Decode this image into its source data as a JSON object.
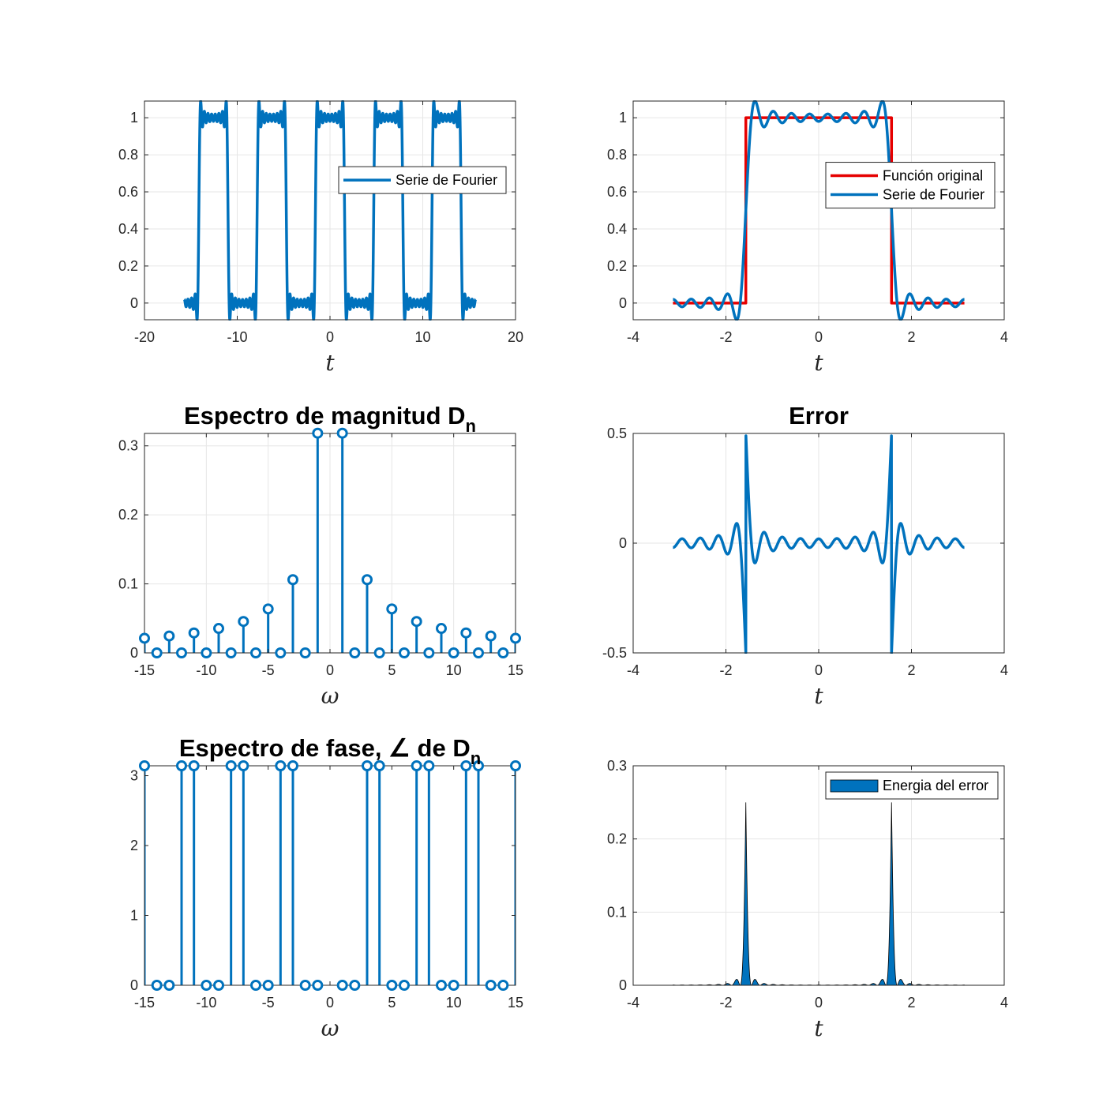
{
  "colors": {
    "blue": "#0072BD",
    "red": "#E60000",
    "grid": "#E6E6E6",
    "axis": "#262626"
  },
  "chart_data": [
    {
      "id": "serie-periodica",
      "type": "line",
      "title": "",
      "xlabel": "t",
      "xlim": [
        -20,
        20
      ],
      "ylim": [
        -0.09,
        1.09
      ],
      "xticks": [
        -20,
        -10,
        0,
        10,
        20
      ],
      "xtick_labels": [
        "-20",
        "-10",
        "0",
        "10",
        "20"
      ],
      "yticks": [
        0,
        0.2,
        0.4,
        0.6,
        0.8,
        1
      ],
      "ytick_labels": [
        "0",
        "0.2",
        "0.4",
        "0.6",
        "0.8",
        "1"
      ],
      "grid": true,
      "legend": {
        "location": "east",
        "entries": [
          {
            "label": "Serie de Fourier",
            "color": "#0072BD"
          }
        ]
      },
      "series": [
        {
          "name": "Serie de Fourier",
          "color": "#0072BD",
          "function": "fourier_square_wave",
          "harmonics": 15,
          "x_range": [
            -15.708,
            15.708
          ],
          "clip": [
            -0.09,
            1.09
          ]
        }
      ]
    },
    {
      "id": "comparacion",
      "type": "line",
      "title": "",
      "xlabel": "t",
      "xlim": [
        -4,
        4
      ],
      "ylim": [
        -0.09,
        1.09
      ],
      "xticks": [
        -4,
        -2,
        0,
        2,
        4
      ],
      "xtick_labels": [
        "-4",
        "-2",
        "0",
        "2",
        "4"
      ],
      "yticks": [
        0,
        0.2,
        0.4,
        0.6,
        0.8,
        1
      ],
      "ytick_labels": [
        "0",
        "0.2",
        "0.4",
        "0.6",
        "0.8",
        "1"
      ],
      "grid": true,
      "legend": {
        "location": "east",
        "entries": [
          {
            "label": "Función original",
            "color": "#E60000"
          },
          {
            "label": "Serie de Fourier",
            "color": "#0072BD"
          }
        ]
      },
      "series": [
        {
          "name": "Función original",
          "color": "#E60000",
          "x": [
            -3.1416,
            -1.5708,
            -1.5708,
            1.5708,
            1.5708,
            3.1416
          ],
          "y": [
            0,
            0,
            1,
            1,
            0,
            0
          ]
        },
        {
          "name": "Serie de Fourier",
          "color": "#0072BD",
          "function": "fourier_square_wave",
          "harmonics": 15,
          "x_range": [
            -3.1416,
            3.1416
          ],
          "clip": [
            -0.09,
            1.09
          ]
        }
      ]
    },
    {
      "id": "espectro-magnitud",
      "type": "stem",
      "title": "Espectro de magnitud D",
      "title_subscript": "n",
      "xlabel": "ω",
      "xlim": [
        -15,
        15
      ],
      "ylim": [
        0,
        0.318
      ],
      "xticks": [
        -15,
        -10,
        -5,
        0,
        5,
        10,
        15
      ],
      "xtick_labels": [
        "-15",
        "-10",
        "-5",
        "0",
        "5",
        "10",
        "15"
      ],
      "yticks": [
        0,
        0.1,
        0.2,
        0.3
      ],
      "ytick_labels": [
        "0",
        "0.1",
        "0.2",
        "0.3"
      ],
      "grid": true,
      "series": [
        {
          "name": "",
          "color": "#0072BD",
          "x": [
            -15,
            -14,
            -13,
            -12,
            -11,
            -10,
            -9,
            -8,
            -7,
            -6,
            -5,
            -4,
            -3,
            -2,
            -1,
            0,
            1,
            2,
            3,
            4,
            5,
            6,
            7,
            8,
            9,
            10,
            11,
            12,
            13,
            14,
            15
          ],
          "y": [
            0.0212,
            0,
            0.0245,
            0,
            0.0289,
            0,
            0.0354,
            0,
            0.0455,
            0,
            0.0637,
            0,
            0.1061,
            0,
            0.3183,
            null,
            0.3183,
            0,
            0.1061,
            0,
            0.0637,
            0,
            0.0455,
            0,
            0.0354,
            0,
            0.0289,
            0,
            0.0245,
            0,
            0.0212
          ]
        }
      ]
    },
    {
      "id": "error",
      "type": "line",
      "title": "Error",
      "xlabel": "t",
      "xlim": [
        -4,
        4
      ],
      "ylim": [
        -0.5,
        0.5
      ],
      "xticks": [
        -4,
        -2,
        0,
        2,
        4
      ],
      "xtick_labels": [
        "-4",
        "-2",
        "0",
        "2",
        "4"
      ],
      "yticks": [
        -0.5,
        0,
        0.5
      ],
      "ytick_labels": [
        "-0.5",
        "0",
        "0.5"
      ],
      "grid": true,
      "series": [
        {
          "name": "",
          "color": "#0072BD",
          "function": "fourier_error",
          "harmonics": 15,
          "x_range": [
            -3.1416,
            3.1416
          ],
          "clip": [
            -0.5,
            0.5
          ]
        }
      ]
    },
    {
      "id": "espectro-fase",
      "type": "stem",
      "title": "Espectro de fase, ∠ de D",
      "title_subscript": "n",
      "xlabel": "ω",
      "xlim": [
        -15,
        15
      ],
      "ylim": [
        0,
        3.1416
      ],
      "xticks": [
        -15,
        -10,
        -5,
        0,
        5,
        10,
        15
      ],
      "xtick_labels": [
        "-15",
        "-10",
        "-5",
        "0",
        "5",
        "10",
        "15"
      ],
      "yticks": [
        0,
        1,
        2,
        3
      ],
      "ytick_labels": [
        "0",
        "1",
        "2",
        "3"
      ],
      "grid": false,
      "series": [
        {
          "name": "",
          "color": "#0072BD",
          "x": [
            -15,
            -14,
            -13,
            -12,
            -11,
            -10,
            -9,
            -8,
            -7,
            -6,
            -5,
            -4,
            -3,
            -2,
            -1,
            0,
            1,
            2,
            3,
            4,
            5,
            6,
            7,
            8,
            9,
            10,
            11,
            12,
            13,
            14,
            15
          ],
          "y": [
            3.1416,
            0,
            0,
            3.1416,
            3.1416,
            0,
            0,
            3.1416,
            3.1416,
            0,
            0,
            3.1416,
            3.1416,
            0,
            0,
            null,
            0,
            0,
            3.1416,
            3.1416,
            0,
            0,
            3.1416,
            3.1416,
            0,
            0,
            3.1416,
            3.1416,
            0,
            0,
            3.1416
          ]
        }
      ]
    },
    {
      "id": "energia-error",
      "type": "area",
      "title": "",
      "xlabel": "t",
      "xlim": [
        -4,
        4
      ],
      "ylim": [
        0,
        0.3
      ],
      "xticks": [
        -4,
        -2,
        0,
        2,
        4
      ],
      "xtick_labels": [
        "-4",
        "-2",
        "0",
        "2",
        "4"
      ],
      "yticks": [
        0,
        0.1,
        0.2,
        0.3
      ],
      "ytick_labels": [
        "0",
        "0.1",
        "0.2",
        "0.3"
      ],
      "grid": true,
      "legend": {
        "location": "northeast",
        "entries": [
          {
            "label": "Energia del error",
            "color": "#0072BD",
            "patch": true
          }
        ]
      },
      "series": [
        {
          "name": "Energia del error",
          "color": "#0072BD",
          "function": "fourier_error_squared",
          "harmonics": 15,
          "x_range": [
            -3.1416,
            3.1416
          ]
        }
      ]
    }
  ]
}
